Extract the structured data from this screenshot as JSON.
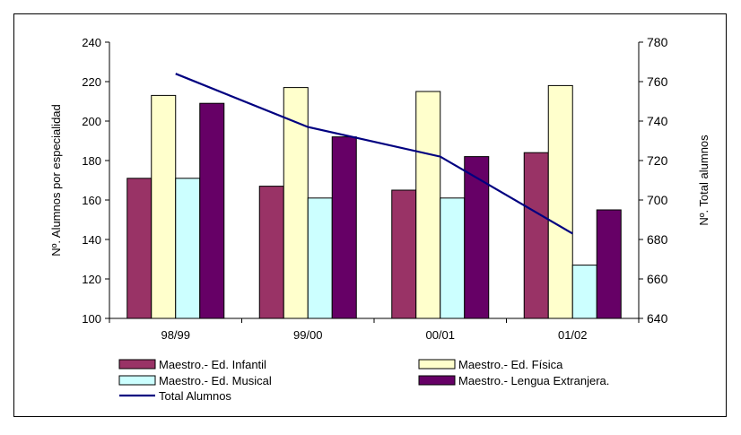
{
  "chart_data": {
    "type": "bar",
    "categories": [
      "98/99",
      "99/00",
      "00/01",
      "01/02"
    ],
    "y_left": {
      "label": "Nº. Alumnos por especialidad",
      "min": 100,
      "max": 240,
      "ticks": [
        100,
        120,
        140,
        160,
        180,
        200,
        220,
        240
      ]
    },
    "y_right": {
      "label": "Nº. Total alumnos",
      "min": 640,
      "max": 780,
      "ticks": [
        640,
        660,
        680,
        700,
        720,
        740,
        760,
        780
      ]
    },
    "series": [
      {
        "name": "Maestro.- Ed. Infantil",
        "type": "bar",
        "axis": "left",
        "color": "#993366",
        "values": [
          171,
          167,
          165,
          184
        ]
      },
      {
        "name": "Maestro.- Ed. Física",
        "type": "bar",
        "axis": "left",
        "color": "#FFFFCC",
        "values": [
          213,
          217,
          215,
          218
        ]
      },
      {
        "name": "Maestro.- Ed. Musical",
        "type": "bar",
        "axis": "left",
        "color": "#CCFFFF",
        "values": [
          171,
          161,
          161,
          127
        ]
      },
      {
        "name": "Maestro.- Lengua Extranjera.",
        "type": "bar",
        "axis": "left",
        "color": "#660066",
        "values": [
          209,
          192,
          182,
          155
        ]
      },
      {
        "name": "Total Alumnos",
        "type": "line",
        "axis": "right",
        "color": "#000080",
        "values": [
          764,
          737,
          722,
          683
        ]
      }
    ],
    "grid": false,
    "legend_position": "bottom"
  }
}
